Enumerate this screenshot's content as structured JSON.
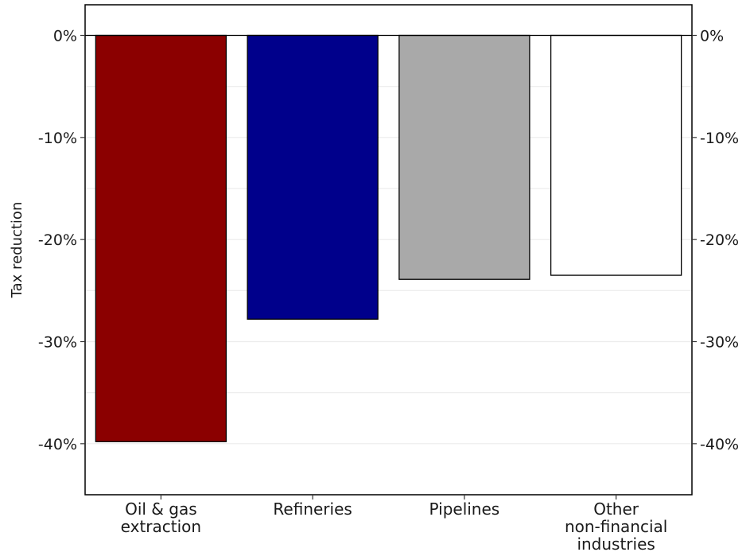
{
  "chart_data": {
    "type": "bar",
    "categories": [
      [
        "Oil & gas",
        "extraction"
      ],
      [
        "Refineries"
      ],
      [
        "Pipelines"
      ],
      [
        "Other",
        "non-financial",
        "industries"
      ]
    ],
    "values": [
      -0.398,
      -0.278,
      -0.239,
      -0.235
    ],
    "colors": [
      "#8b0000",
      "#00008b",
      "#a9a9a9",
      "#ffffff"
    ],
    "ylabel": "Tax reduction",
    "xlabel": "",
    "ylim": [
      -0.45,
      0.03
    ],
    "yticks": [
      0,
      -0.1,
      -0.2,
      -0.3,
      -0.4
    ],
    "ytick_labels": [
      "0%",
      "-10%",
      "-20%",
      "-30%",
      "-40%"
    ],
    "secondary_axis": "right",
    "grid": "horizontal-minor-and-major",
    "legend": "none"
  }
}
